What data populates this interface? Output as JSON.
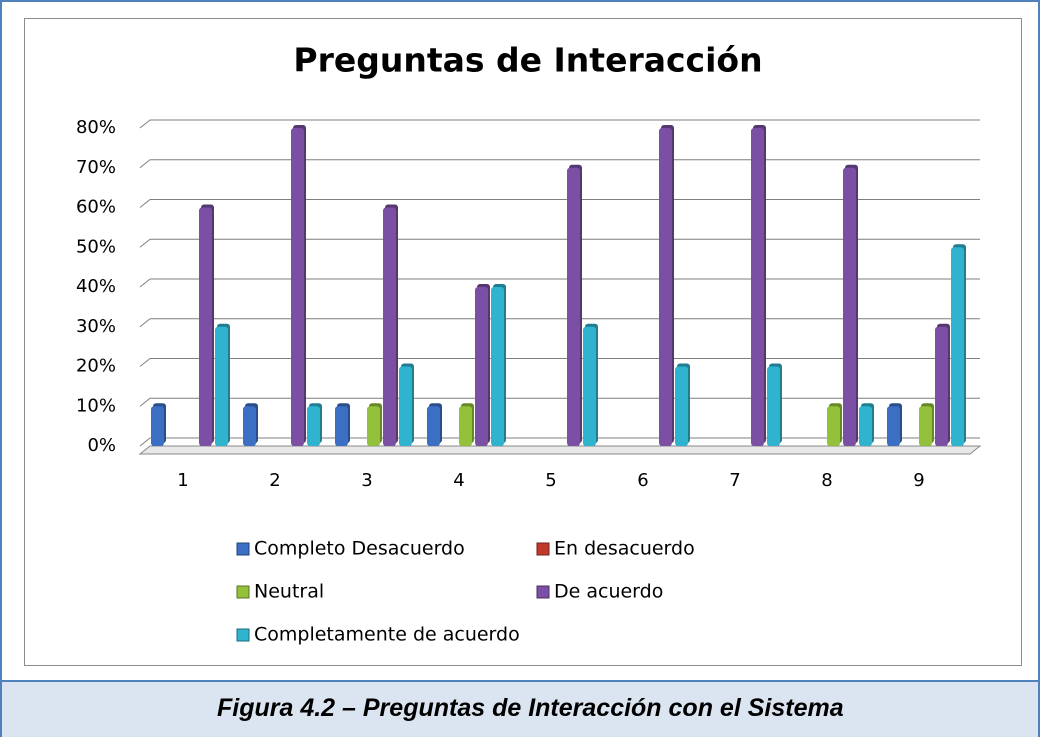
{
  "chart_data": {
    "type": "bar3d",
    "title": "Preguntas de Interacción",
    "categories": [
      "1",
      "2",
      "3",
      "4",
      "5",
      "6",
      "7",
      "8",
      "9"
    ],
    "series": [
      {
        "name": "Completo Desacuerdo",
        "color": "#3a6fc4",
        "values": [
          10,
          10,
          10,
          10,
          0,
          0,
          0,
          0,
          10
        ]
      },
      {
        "name": "En desacuerdo",
        "color": "#c0392b",
        "values": [
          0,
          0,
          0,
          0,
          0,
          0,
          0,
          0,
          0
        ]
      },
      {
        "name": "Neutral",
        "color": "#93c13b",
        "values": [
          0,
          0,
          10,
          10,
          0,
          0,
          0,
          10,
          10
        ]
      },
      {
        "name": "De acuerdo",
        "color": "#7b4fa3",
        "values": [
          60,
          80,
          60,
          40,
          70,
          80,
          80,
          70,
          30
        ]
      },
      {
        "name": "Completamente de acuerdo",
        "color": "#2fb3cf",
        "values": [
          30,
          10,
          20,
          40,
          30,
          20,
          20,
          10,
          50
        ]
      }
    ],
    "ylim": [
      0,
      80
    ],
    "yticks": [
      {
        "value": 0,
        "label": "0%"
      },
      {
        "value": 10,
        "label": "10%"
      },
      {
        "value": 20,
        "label": "20%"
      },
      {
        "value": 30,
        "label": "30%"
      },
      {
        "value": 40,
        "label": "40%"
      },
      {
        "value": 50,
        "label": "50%"
      },
      {
        "value": 60,
        "label": "60%"
      },
      {
        "value": 70,
        "label": "70%"
      },
      {
        "value": 80,
        "label": "80%"
      }
    ],
    "grid": true,
    "caption": "Figura 4.2 – Preguntas de Interacción con el Sistema"
  }
}
